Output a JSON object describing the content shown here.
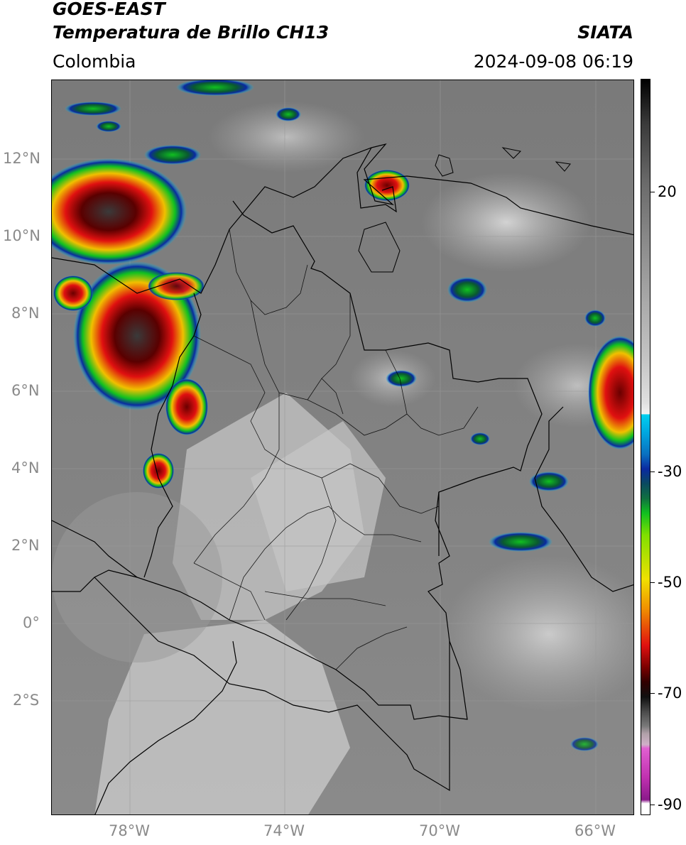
{
  "header": {
    "satellite": "GOES-EAST",
    "product": "Temperatura de Brillo CH13",
    "region": "Colombia",
    "agency": "SIATA",
    "datetime": "2024-09-08 06:19"
  },
  "map": {
    "lat_labels": [
      "12°N",
      "10°N",
      "8°N",
      "6°N",
      "4°N",
      "2°N",
      "0°",
      "2°S"
    ],
    "lon_labels": [
      "78°W",
      "74°W",
      "70°W",
      "66°W"
    ],
    "extent": {
      "lon_min": -80.0,
      "lon_max": -65.0,
      "lat_min": -4.9,
      "lat_max": 14.1
    }
  },
  "colorbar": {
    "labels": [
      "20",
      "-30",
      "-50",
      "-70",
      "-90"
    ],
    "range": [
      -92,
      43
    ],
    "colors": {
      "warm_gray_top": "#000000",
      "cyan": "#00c8f0",
      "blue": "#0a2aa0",
      "green": "#10d020",
      "yellow": "#f0e000",
      "red": "#e01010",
      "dark_red": "#3a0000",
      "magenta": "#e060d0",
      "purple": "#8a1a8a"
    }
  }
}
